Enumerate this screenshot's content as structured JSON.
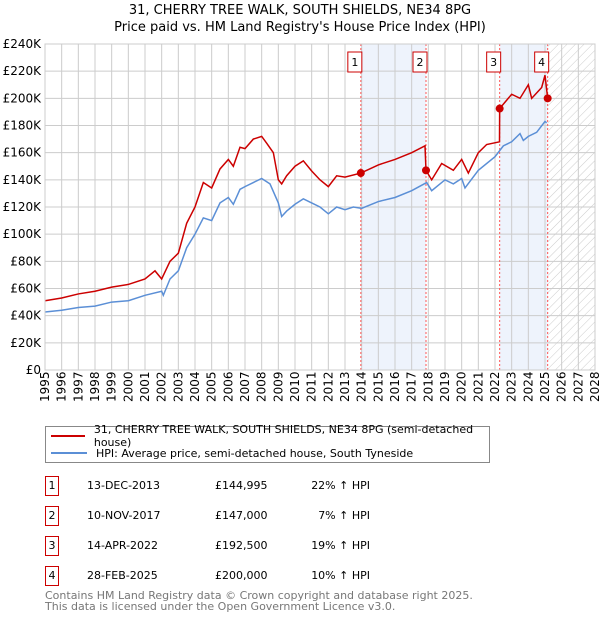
{
  "title": "31, CHERRY TREE WALK, SOUTH SHIELDS, NE34 8PG",
  "subtitle": "Price paid vs. HM Land Registry's House Price Index (HPI)",
  "chart_data": {
    "type": "line",
    "title": "31, CHERRY TREE WALK, SOUTH SHIELDS, NE34 8PG",
    "subtitle": "Price paid vs. HM Land Registry's House Price Index (HPI)",
    "xlim": [
      1995,
      2028
    ],
    "ylim": [
      0,
      240000
    ],
    "x_ticks": [
      "1995",
      "1996",
      "1997",
      "1998",
      "1999",
      "2000",
      "2001",
      "2002",
      "2003",
      "2004",
      "2005",
      "2006",
      "2007",
      "2008",
      "2009",
      "2010",
      "2011",
      "2012",
      "2013",
      "2014",
      "2015",
      "2016",
      "2017",
      "2018",
      "2019",
      "2020",
      "2021",
      "2022",
      "2023",
      "2024",
      "2025",
      "2026",
      "2027",
      "2028"
    ],
    "y_ticks": [
      "£0",
      "£20K",
      "£40K",
      "£60K",
      "£80K",
      "£100K",
      "£120K",
      "£140K",
      "£160K",
      "£180K",
      "£200K",
      "£220K",
      "£240K"
    ],
    "grid": true,
    "series": [
      {
        "name": "31, CHERRY TREE WALK, SOUTH SHIELDS, NE34 8PG (semi-detached house)",
        "color": "#cc0000",
        "x": [
          1995,
          1996,
          1997,
          1998,
          1999,
          2000,
          2001,
          2001.6,
          2002,
          2002.5,
          2003,
          2003.5,
          2004,
          2004.5,
          2005,
          2005.5,
          2006,
          2006.3,
          2006.7,
          2007,
          2007.5,
          2008,
          2008.3,
          2008.7,
          2009,
          2009.2,
          2009.5,
          2010,
          2010.5,
          2011,
          2011.5,
          2012,
          2012.5,
          2013,
          2013.95,
          2015,
          2016,
          2017,
          2017.8,
          2017.86,
          2018.2,
          2018.8,
          2019.5,
          2020,
          2020.4,
          2021,
          2021.5,
          2022.27,
          2022.28,
          2023,
          2023.5,
          2024,
          2024.2,
          2024.8,
          2025,
          2025.16
        ],
        "y": [
          51000,
          53000,
          56000,
          58000,
          61000,
          63000,
          67000,
          73000,
          67000,
          80000,
          86000,
          108000,
          120000,
          138000,
          134000,
          148000,
          155000,
          150000,
          164000,
          163000,
          170000,
          172000,
          167000,
          160000,
          140000,
          137000,
          143000,
          150000,
          154000,
          146500,
          140000,
          135000,
          143000,
          142000,
          144995,
          151000,
          155000,
          160000,
          165000,
          147000,
          140000,
          152000,
          147000,
          155000,
          145000,
          160000,
          166000,
          168000,
          192500,
          203000,
          200000,
          210000,
          200000,
          208000,
          217000,
          200000
        ]
      },
      {
        "name": "HPI: Average price, semi-detached house, South Tyneside",
        "color": "#5b8fd6",
        "x": [
          1995,
          1996,
          1997,
          1998,
          1999,
          2000,
          2001,
          2002,
          2002.1,
          2002.5,
          2003,
          2003.5,
          2004,
          2004.5,
          2005,
          2005.5,
          2006,
          2006.3,
          2006.7,
          2007,
          2007.5,
          2008,
          2008.5,
          2009,
          2009.2,
          2009.5,
          2010,
          2010.5,
          2011,
          2011.5,
          2012,
          2012.5,
          2013,
          2013.5,
          2014,
          2015,
          2016,
          2017,
          2017.9,
          2018.2,
          2019,
          2019.5,
          2020,
          2020.2,
          2021,
          2022,
          2022.5,
          2023,
          2023.5,
          2023.7,
          2024,
          2024.5,
          2025,
          2025.1
        ],
        "y": [
          42700,
          44000,
          46000,
          47000,
          50000,
          51000,
          55000,
          58000,
          55000,
          67000,
          73000,
          90000,
          100000,
          112000,
          110000,
          123000,
          127000,
          122000,
          133000,
          135000,
          138000,
          141000,
          137000,
          123000,
          113000,
          117000,
          122000,
          126000,
          123000,
          120000,
          115000,
          120000,
          118000,
          120000,
          119000,
          124000,
          127000,
          132000,
          138000,
          132000,
          140000,
          137000,
          141000,
          134000,
          147000,
          157000,
          165000,
          168000,
          174000,
          169000,
          172000,
          175000,
          183000,
          182000
        ]
      }
    ],
    "sales": [
      {
        "label": "1",
        "x": 2013.95,
        "y": 144995
      },
      {
        "label": "2",
        "x": 2017.86,
        "y": 147000
      },
      {
        "label": "3",
        "x": 2022.28,
        "y": 192500
      },
      {
        "label": "4",
        "x": 2025.16,
        "y": 200000
      }
    ],
    "legend_position": "below"
  },
  "legend": [
    {
      "label": "31, CHERRY TREE WALK, SOUTH SHIELDS, NE34 8PG (semi-detached house)",
      "color": "#cc0000"
    },
    {
      "label": "HPI: Average price, semi-detached house, South Tyneside",
      "color": "#5b8fd6"
    }
  ],
  "table": [
    {
      "num": "1",
      "date": "13-DEC-2013",
      "price": "£144,995",
      "hpi": "22% ↑ HPI"
    },
    {
      "num": "2",
      "date": "10-NOV-2017",
      "price": "£147,000",
      "hpi": "7% ↑ HPI"
    },
    {
      "num": "3",
      "date": "14-APR-2022",
      "price": "£192,500",
      "hpi": "19% ↑ HPI"
    },
    {
      "num": "4",
      "date": "28-FEB-2025",
      "price": "£200,000",
      "hpi": "10% ↑ HPI"
    }
  ],
  "footer": [
    "Contains HM Land Registry data © Crown copyright and database right 2025.",
    "This data is licensed under the Open Government Licence v3.0."
  ]
}
